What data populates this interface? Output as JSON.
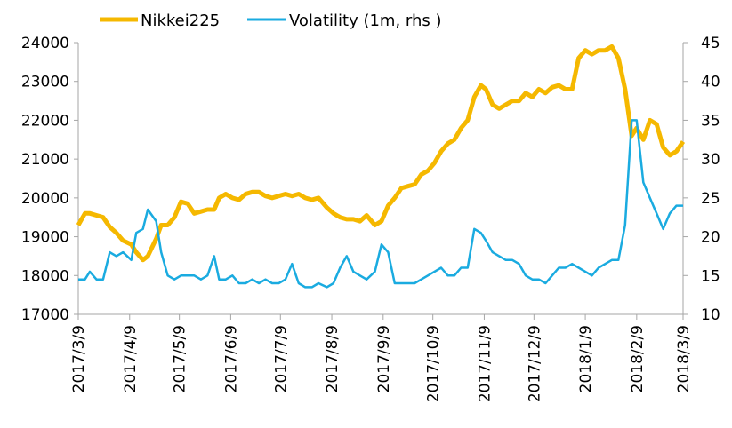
{
  "chart_data": {
    "type": "line",
    "title": "",
    "xlabel": "",
    "ylabel": "",
    "y2label": "",
    "grid": false,
    "legend_position": "top-left",
    "colors": {
      "nikkei": "#F5B800",
      "volatility": "#1AABE0"
    },
    "ylim": [
      17000,
      24000
    ],
    "y2lim": [
      10,
      45
    ],
    "y_ticks": [
      "17000",
      "18000",
      "19000",
      "20000",
      "21000",
      "22000",
      "23000",
      "24000"
    ],
    "y2_ticks": [
      "10",
      "15",
      "20",
      "25",
      "30",
      "35",
      "40",
      "45"
    ],
    "x_ticks": [
      "2017/3/9",
      "2017/4/9",
      "2017/5/9",
      "2017/6/9",
      "2017/7/9",
      "2017/8/9",
      "2017/9/9",
      "2017/10/9",
      "2017/11/9",
      "2017/12/9",
      "2018/1/9",
      "2018/2/9",
      "2018/3/9"
    ],
    "series": [
      {
        "name": "Nikkei225",
        "axis": "left",
        "x": [
          "2017-03-09",
          "2017-03-13",
          "2017-03-16",
          "2017-03-20",
          "2017-03-24",
          "2017-03-28",
          "2017-04-01",
          "2017-04-05",
          "2017-04-10",
          "2017-04-13",
          "2017-04-17",
          "2017-04-20",
          "2017-04-25",
          "2017-04-28",
          "2017-05-02",
          "2017-05-06",
          "2017-05-10",
          "2017-05-14",
          "2017-05-18",
          "2017-05-22",
          "2017-05-26",
          "2017-05-30",
          "2017-06-02",
          "2017-06-06",
          "2017-06-10",
          "2017-06-14",
          "2017-06-18",
          "2017-06-22",
          "2017-06-26",
          "2017-06-30",
          "2017-07-04",
          "2017-07-08",
          "2017-07-12",
          "2017-07-16",
          "2017-07-20",
          "2017-07-24",
          "2017-07-28",
          "2017-08-01",
          "2017-08-06",
          "2017-08-10",
          "2017-08-14",
          "2017-08-18",
          "2017-08-22",
          "2017-08-26",
          "2017-08-30",
          "2017-09-04",
          "2017-09-08",
          "2017-09-12",
          "2017-09-16",
          "2017-09-20",
          "2017-09-24",
          "2017-09-28",
          "2017-10-02",
          "2017-10-06",
          "2017-10-10",
          "2017-10-14",
          "2017-10-18",
          "2017-10-22",
          "2017-10-26",
          "2017-10-30",
          "2017-11-03",
          "2017-11-07",
          "2017-11-10",
          "2017-11-14",
          "2017-11-18",
          "2017-11-22",
          "2017-11-26",
          "2017-11-30",
          "2017-12-04",
          "2017-12-08",
          "2017-12-12",
          "2017-12-16",
          "2017-12-20",
          "2017-12-24",
          "2017-12-28",
          "2018-01-01",
          "2018-01-05",
          "2018-01-09",
          "2018-01-13",
          "2018-01-17",
          "2018-01-21",
          "2018-01-25",
          "2018-01-29",
          "2018-02-02",
          "2018-02-06",
          "2018-02-09",
          "2018-02-13",
          "2018-02-17",
          "2018-02-21",
          "2018-02-25",
          "2018-03-01",
          "2018-03-05",
          "2018-03-09"
        ],
        "values": [
          19300,
          19600,
          19600,
          19550,
          19500,
          19250,
          19100,
          18900,
          18800,
          18600,
          18400,
          18500,
          18950,
          19300,
          19300,
          19500,
          19900,
          19850,
          19600,
          19650,
          19700,
          19700,
          20000,
          20100,
          20000,
          19950,
          20100,
          20150,
          20150,
          20050,
          20000,
          20050,
          20100,
          20050,
          20100,
          20000,
          19950,
          20000,
          19750,
          19600,
          19500,
          19450,
          19450,
          19400,
          19550,
          19300,
          19400,
          19800,
          20000,
          20250,
          20300,
          20350,
          20600,
          20700,
          20900,
          21200,
          21400,
          21500,
          21800,
          22000,
          22600,
          22900,
          22800,
          22400,
          22300,
          22400,
          22500,
          22500,
          22700,
          22600,
          22800,
          22700,
          22850,
          22900,
          22800,
          22800,
          23600,
          23800,
          23700,
          23800,
          23800,
          23900,
          23600,
          22800,
          21600,
          21800,
          21500,
          22000,
          21900,
          21300,
          21100,
          21200,
          21450
        ]
      },
      {
        "name": "Volatility (1m, rhs )",
        "axis": "right",
        "x": [
          "2017-03-09",
          "2017-03-13",
          "2017-03-16",
          "2017-03-20",
          "2017-03-24",
          "2017-03-28",
          "2017-04-01",
          "2017-04-05",
          "2017-04-10",
          "2017-04-13",
          "2017-04-17",
          "2017-04-20",
          "2017-04-25",
          "2017-04-28",
          "2017-05-02",
          "2017-05-06",
          "2017-05-10",
          "2017-05-14",
          "2017-05-18",
          "2017-05-22",
          "2017-05-26",
          "2017-05-30",
          "2017-06-02",
          "2017-06-06",
          "2017-06-10",
          "2017-06-14",
          "2017-06-18",
          "2017-06-22",
          "2017-06-26",
          "2017-06-30",
          "2017-07-04",
          "2017-07-08",
          "2017-07-12",
          "2017-07-16",
          "2017-07-20",
          "2017-07-24",
          "2017-07-28",
          "2017-08-01",
          "2017-08-06",
          "2017-08-10",
          "2017-08-14",
          "2017-08-18",
          "2017-08-22",
          "2017-08-26",
          "2017-08-30",
          "2017-09-04",
          "2017-09-08",
          "2017-09-12",
          "2017-09-16",
          "2017-09-20",
          "2017-09-24",
          "2017-09-28",
          "2017-10-02",
          "2017-10-06",
          "2017-10-10",
          "2017-10-14",
          "2017-10-18",
          "2017-10-22",
          "2017-10-26",
          "2017-10-30",
          "2017-11-03",
          "2017-11-07",
          "2017-11-10",
          "2017-11-14",
          "2017-11-18",
          "2017-11-22",
          "2017-11-26",
          "2017-11-30",
          "2017-12-04",
          "2017-12-08",
          "2017-12-12",
          "2017-12-16",
          "2017-12-20",
          "2017-12-24",
          "2017-12-28",
          "2018-01-01",
          "2018-01-05",
          "2018-01-09",
          "2018-01-13",
          "2018-01-17",
          "2018-01-21",
          "2018-01-25",
          "2018-01-29",
          "2018-02-02",
          "2018-02-06",
          "2018-02-09",
          "2018-02-13",
          "2018-02-17",
          "2018-02-21",
          "2018-02-25",
          "2018-03-01",
          "2018-03-05",
          "2018-03-09"
        ],
        "values": [
          14.5,
          14.5,
          15.5,
          14.5,
          14.5,
          18,
          17.5,
          18,
          17,
          20.5,
          21,
          23.5,
          22,
          18,
          15,
          14.5,
          15,
          15,
          15,
          14.5,
          15,
          17.5,
          14.5,
          14.5,
          15,
          14,
          14,
          14.5,
          14,
          14.5,
          14,
          14,
          14.5,
          16.5,
          14,
          13.5,
          13.5,
          14,
          13.5,
          14,
          16,
          17.5,
          15.5,
          15,
          14.5,
          15.5,
          19,
          18,
          14,
          14,
          14,
          14,
          14.5,
          15,
          15.5,
          16,
          15,
          15,
          16,
          16,
          21,
          20.5,
          19.5,
          18,
          17.5,
          17,
          17,
          16.5,
          15,
          14.5,
          14.5,
          14,
          15,
          16,
          16,
          16.5,
          16,
          15.5,
          15,
          16,
          16.5,
          17,
          17,
          21.5,
          35,
          35,
          27,
          25,
          23,
          21,
          23,
          24,
          24
        ]
      }
    ]
  },
  "legend": [
    {
      "label": "Nikkei225",
      "color": "#F5B800"
    },
    {
      "label": "Volatility (1m, rhs )",
      "color": "#1AABE0"
    }
  ]
}
